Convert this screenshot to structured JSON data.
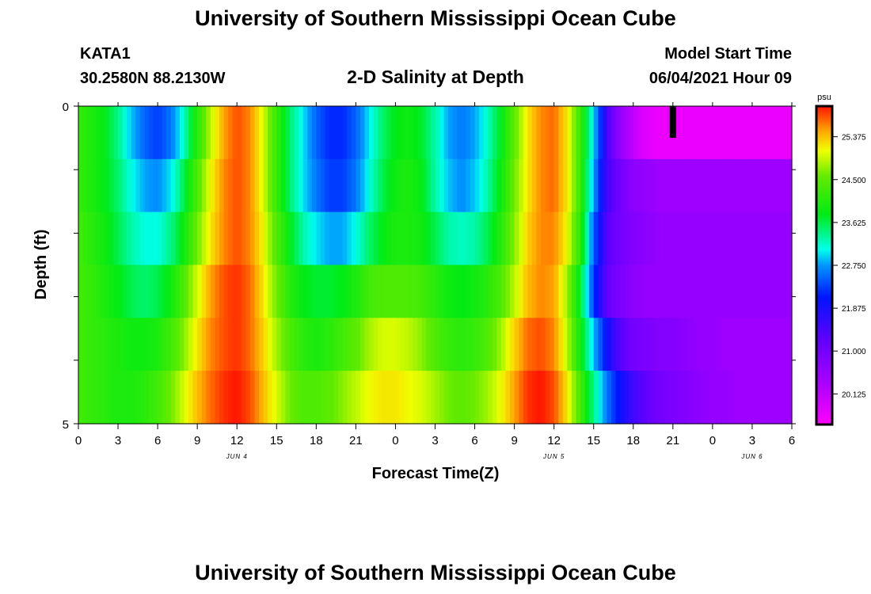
{
  "header": {
    "title_top": "University of Southern Mississippi Ocean Cube",
    "title_bottom": "University of Southern Mississippi Ocean Cube",
    "station_id": "KATA1",
    "station_coords": "30.2580N  88.2130W",
    "plot_title": "2-D Salinity at Depth",
    "start_label": "Model Start Time",
    "start_value": "06/04/2021 Hour 09"
  },
  "chart_data": {
    "type": "heatmap",
    "title": "2-D Salinity at Depth",
    "xlabel": "Forecast Time(Z)",
    "ylabel": "Depth (ft)",
    "x_range_hours": [
      0,
      54
    ],
    "y_range_ft": [
      0,
      5
    ],
    "x_tick_labels": [
      "0",
      "3",
      "6",
      "9",
      "12",
      "15",
      "18",
      "21",
      "0",
      "3",
      "6",
      "9",
      "12",
      "15",
      "18",
      "21",
      "0",
      "3",
      "6"
    ],
    "y_tick_labels": [
      "0",
      "5"
    ],
    "y_minor_ticks": [
      1,
      2,
      3,
      4
    ],
    "day_labels": [
      {
        "hour": 12,
        "text": "JUN 4"
      },
      {
        "hour": 36,
        "text": "JUN 5"
      },
      {
        "hour": 51,
        "text": "JUN 6"
      }
    ],
    "current_time_marker_hour": 45,
    "colorbar": {
      "unit": "psu",
      "range": [
        19.5,
        26.0
      ],
      "tick_labels": [
        "25.375",
        "24.500",
        "23.625",
        "22.750",
        "21.875",
        "21.000",
        "20.125"
      ],
      "tick_values": [
        25.375,
        24.5,
        23.625,
        22.75,
        21.875,
        21.0,
        20.125
      ]
    },
    "layer_depths_ft": [
      0.25,
      1.0,
      2.0,
      3.0,
      4.0,
      4.75
    ],
    "time_knots_hours": [
      0,
      1,
      2,
      3,
      4,
      5,
      6,
      7,
      8,
      9,
      10,
      11,
      12,
      13,
      14,
      15,
      16,
      17,
      18,
      19,
      20,
      21,
      22,
      23,
      24,
      25,
      26,
      27,
      28,
      29,
      30,
      31,
      32,
      33,
      34,
      35,
      36,
      37,
      38,
      39,
      40,
      41,
      42,
      43,
      44,
      45,
      46,
      47,
      48,
      49,
      50,
      51,
      52,
      53,
      54
    ],
    "salinity_psu": [
      [
        24.2,
        24.0,
        23.8,
        23.4,
        22.9,
        22.5,
        22.3,
        22.6,
        23.2,
        24.1,
        24.9,
        25.5,
        25.8,
        25.6,
        25.0,
        24.2,
        23.5,
        23.0,
        22.5,
        22.2,
        22.2,
        22.5,
        23.0,
        23.5,
        23.8,
        23.9,
        23.7,
        23.3,
        22.8,
        22.6,
        22.8,
        23.2,
        23.8,
        24.5,
        25.2,
        25.6,
        25.7,
        25.2,
        24.2,
        23.0,
        21.5,
        20.6,
        20.1,
        19.8,
        19.7,
        19.7,
        19.7,
        19.7,
        19.7,
        19.7,
        19.7,
        19.7,
        19.7,
        19.7,
        19.7
      ],
      [
        24.2,
        24.0,
        23.8,
        23.5,
        23.1,
        22.8,
        22.7,
        23.0,
        23.6,
        24.4,
        25.1,
        25.6,
        25.8,
        25.6,
        25.0,
        24.2,
        23.5,
        23.0,
        22.6,
        22.3,
        22.3,
        22.6,
        23.1,
        23.6,
        23.9,
        24.0,
        23.8,
        23.3,
        22.9,
        22.7,
        22.9,
        23.3,
        23.9,
        24.6,
        25.2,
        25.6,
        25.7,
        25.2,
        24.2,
        22.8,
        21.5,
        21.0,
        20.7,
        20.6,
        20.5,
        20.5,
        20.5,
        20.5,
        20.5,
        20.5,
        20.5,
        20.5,
        20.5,
        20.5,
        20.5
      ],
      [
        24.3,
        24.1,
        23.9,
        23.6,
        23.3,
        23.1,
        23.1,
        23.4,
        23.9,
        24.6,
        25.2,
        25.6,
        25.8,
        25.6,
        25.1,
        24.4,
        23.8,
        23.3,
        23.0,
        22.8,
        22.8,
        23.1,
        23.5,
        23.8,
        24.0,
        24.0,
        23.9,
        23.6,
        23.3,
        23.2,
        23.3,
        23.6,
        24.1,
        24.7,
        25.3,
        25.6,
        25.6,
        25.1,
        24.1,
        22.5,
        21.3,
        21.0,
        20.8,
        20.7,
        20.6,
        20.6,
        20.6,
        20.6,
        20.6,
        20.6,
        20.6,
        20.6,
        20.6,
        20.6,
        20.6
      ],
      [
        24.3,
        24.2,
        24.0,
        23.8,
        23.6,
        23.5,
        23.6,
        23.9,
        24.4,
        25.0,
        25.5,
        25.8,
        25.9,
        25.7,
        25.2,
        24.6,
        24.1,
        23.8,
        23.7,
        23.7,
        23.8,
        24.0,
        24.3,
        24.4,
        24.4,
        24.4,
        24.3,
        24.1,
        23.9,
        23.8,
        23.9,
        24.1,
        24.4,
        24.9,
        25.4,
        25.6,
        25.5,
        24.8,
        23.7,
        22.3,
        21.2,
        20.9,
        20.7,
        20.6,
        20.6,
        20.6,
        20.6,
        20.6,
        20.6,
        20.6,
        20.6,
        20.6,
        20.6,
        20.6,
        20.6
      ],
      [
        24.3,
        24.2,
        24.1,
        24.0,
        23.9,
        23.9,
        24.0,
        24.3,
        24.7,
        25.2,
        25.6,
        25.8,
        25.9,
        25.7,
        25.3,
        24.8,
        24.4,
        24.1,
        24.0,
        24.1,
        24.3,
        24.5,
        24.8,
        25.0,
        25.0,
        24.9,
        24.7,
        24.4,
        24.2,
        24.1,
        24.2,
        24.4,
        24.8,
        25.3,
        25.7,
        25.8,
        25.6,
        24.9,
        23.9,
        22.9,
        22.0,
        21.3,
        21.0,
        20.9,
        20.8,
        20.8,
        20.7,
        20.6,
        20.6,
        20.5,
        20.5,
        20.5,
        20.5,
        20.5,
        20.5
      ],
      [
        24.3,
        24.2,
        24.1,
        24.0,
        24.0,
        24.1,
        24.3,
        24.6,
        25.0,
        25.4,
        25.7,
        25.9,
        26.0,
        25.8,
        25.4,
        25.0,
        24.6,
        24.4,
        24.4,
        24.5,
        24.7,
        24.9,
        25.1,
        25.2,
        25.2,
        25.1,
        25.0,
        24.8,
        24.6,
        24.5,
        24.6,
        24.8,
        25.1,
        25.5,
        25.9,
        26.0,
        25.8,
        25.2,
        24.3,
        23.4,
        22.6,
        22.0,
        21.5,
        21.2,
        21.0,
        20.9,
        20.8,
        20.7,
        20.6,
        20.6,
        20.5,
        20.5,
        20.5,
        20.5,
        20.5
      ]
    ]
  }
}
